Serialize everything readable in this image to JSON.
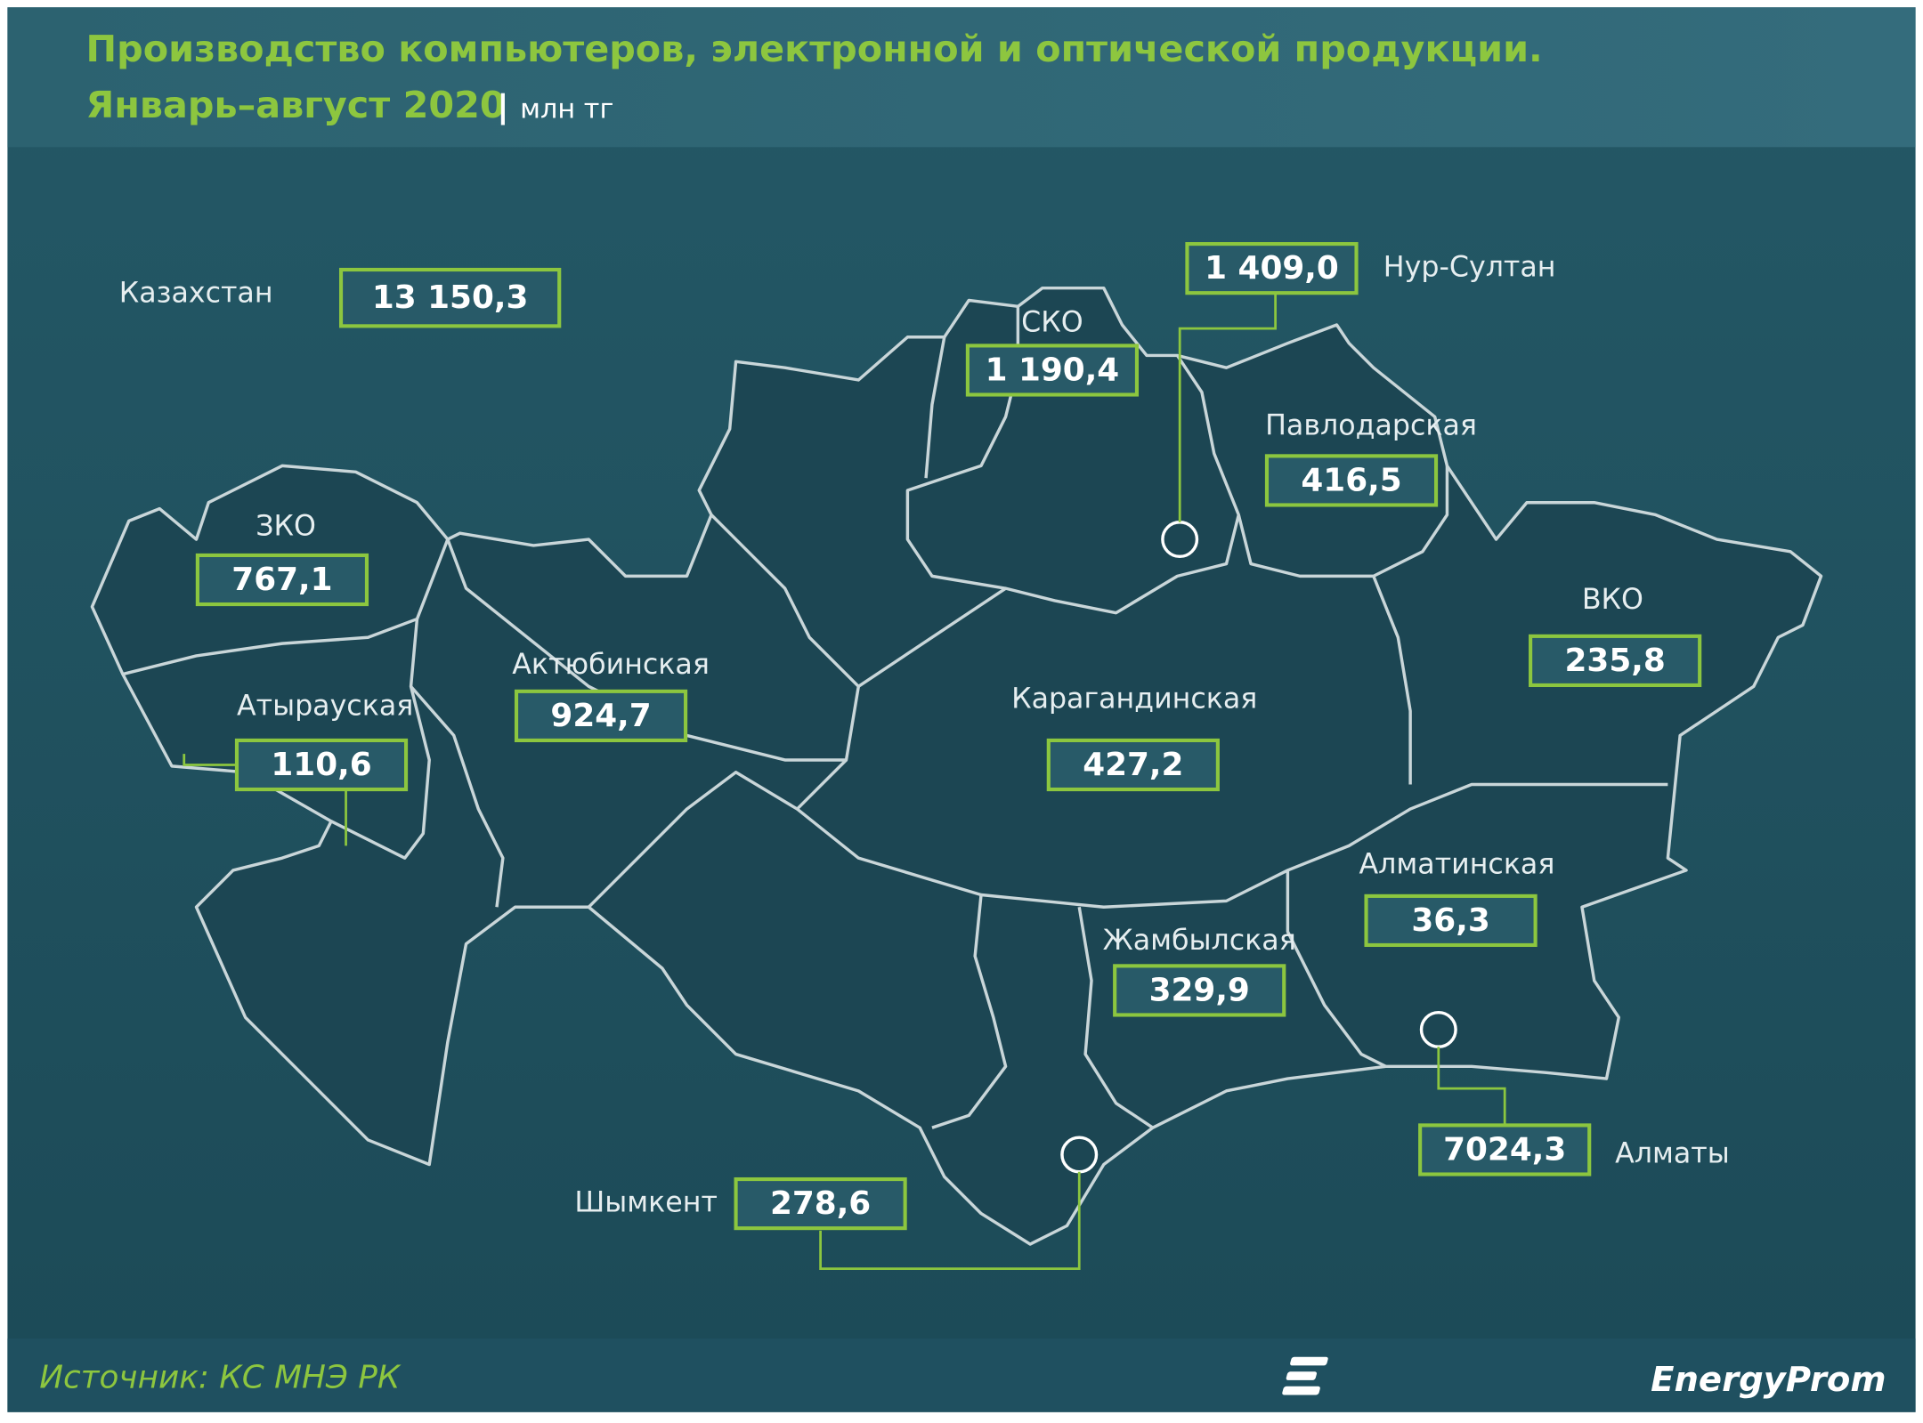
{
  "header": {
    "title": "Производство компьютеров, электронной и оптической продукции.",
    "period": "Январь–август 2020",
    "unit": "млн тг"
  },
  "total": {
    "name": "Казахстан",
    "value": "13 150,3"
  },
  "regions": [
    {
      "name": "ЗКО",
      "value": "767,1"
    },
    {
      "name": "Атырауская",
      "value": "110,6"
    },
    {
      "name": "Актюбинская",
      "value": "924,7"
    },
    {
      "name": "СКО",
      "value": "1 190,4"
    },
    {
      "name": "Павлодарская",
      "value": "416,5"
    },
    {
      "name": "ВКО",
      "value": "235,8"
    },
    {
      "name": "Карагандинская",
      "value": "427,2"
    },
    {
      "name": "Алматинская",
      "value": "36,3"
    },
    {
      "name": "Жамбылская",
      "value": "329,9"
    },
    {
      "name": "Нур-Султан",
      "value": "1 409,0"
    },
    {
      "name": "Шымкент",
      "value": "278,6"
    },
    {
      "name": "Алматы",
      "value": "7024,3"
    }
  ],
  "footer": {
    "source": "Источник: КС МНЭ РК",
    "logo": "EnergyProm"
  }
}
